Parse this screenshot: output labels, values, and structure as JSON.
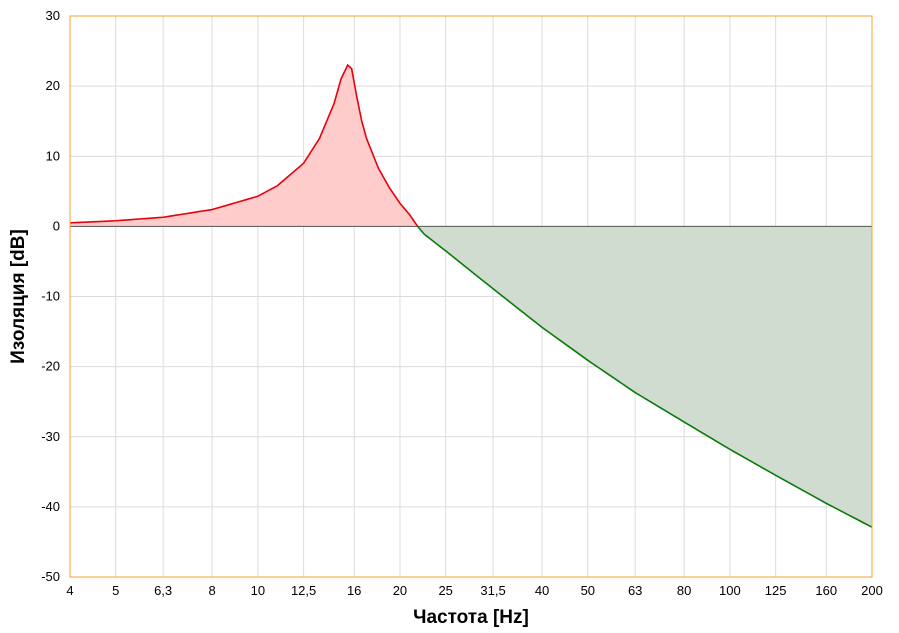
{
  "chart_data": {
    "type": "area",
    "title": "",
    "xlabel": "Частота [Hz]",
    "ylabel": "Изоляция [dB]",
    "x_scale": "log",
    "xlim": [
      4,
      200
    ],
    "ylim": [
      -50,
      30
    ],
    "grid": true,
    "x_ticks": [
      {
        "value": 4,
        "label": "4"
      },
      {
        "value": 5,
        "label": "5"
      },
      {
        "value": 6.3,
        "label": "6,3"
      },
      {
        "value": 8,
        "label": "8"
      },
      {
        "value": 10,
        "label": "10"
      },
      {
        "value": 12.5,
        "label": "12,5"
      },
      {
        "value": 16,
        "label": "16"
      },
      {
        "value": 20,
        "label": "20"
      },
      {
        "value": 25,
        "label": "25"
      },
      {
        "value": 31.5,
        "label": "31,5"
      },
      {
        "value": 40,
        "label": "40"
      },
      {
        "value": 50,
        "label": "50"
      },
      {
        "value": 63,
        "label": "63"
      },
      {
        "value": 80,
        "label": "80"
      },
      {
        "value": 100,
        "label": "100"
      },
      {
        "value": 125,
        "label": "125"
      },
      {
        "value": 160,
        "label": "160"
      },
      {
        "value": 200,
        "label": "200"
      }
    ],
    "y_ticks": [
      {
        "value": 30,
        "label": "30"
      },
      {
        "value": 20,
        "label": "20"
      },
      {
        "value": 10,
        "label": "10"
      },
      {
        "value": 0,
        "label": "0"
      },
      {
        "value": -10,
        "label": "-10"
      },
      {
        "value": -20,
        "label": "-20"
      },
      {
        "value": -30,
        "label": "-30"
      },
      {
        "value": -40,
        "label": "-40"
      },
      {
        "value": -50,
        "label": "-50"
      }
    ],
    "x": [
      4,
      5,
      6.3,
      8,
      10,
      11,
      12.5,
      13.5,
      14.5,
      15,
      15.5,
      15.8,
      16.2,
      16.6,
      17,
      18,
      19,
      20,
      21,
      21.8,
      22.5,
      25,
      31.5,
      40,
      50,
      63,
      80,
      100,
      125,
      160,
      200
    ],
    "series": [
      {
        "values": [
          0.5,
          0.8,
          1.3,
          2.4,
          4.3,
          5.8,
          9.0,
          12.5,
          17.5,
          21.0,
          23.0,
          22.5,
          18.5,
          15.0,
          12.5,
          8.3,
          5.5,
          3.3,
          1.6,
          0.0,
          -1.1,
          -3.5,
          -8.9,
          -14.4,
          -19.1,
          -23.7,
          -27.9,
          -31.8,
          -35.5,
          -39.5,
          -42.9
        ]
      }
    ],
    "colors": {
      "positive_line": "#e8000b",
      "positive_fill": "#ffcccc",
      "negative_line": "#0a7a0a",
      "negative_fill": "#cfdccf",
      "zero_line": "#555555",
      "grid": "#dcdcdc",
      "plot_border": "#f0a030"
    }
  }
}
